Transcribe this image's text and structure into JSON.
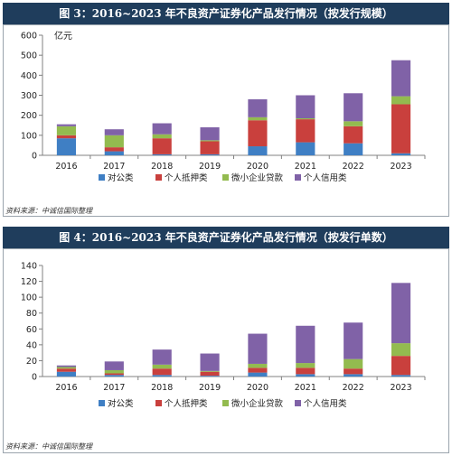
{
  "colors": {
    "title_bg": "#1f3d5c",
    "series": [
      "#3f7fc4",
      "#c9403d",
      "#93bb4f",
      "#8062a7"
    ]
  },
  "charts": [
    {
      "title": "图 3：2016~2023 年不良资产证券化产品发行情况（按发行规模）",
      "source": "资料来源：中诚信国际整理"
    },
    {
      "title": "图 4：2016~2023 年不良资产证券化产品发行情况（按发行单数）",
      "source": "资料来源：中诚信国际整理"
    }
  ],
  "chart_data": [
    {
      "type": "bar",
      "stacked": true,
      "title": "图 3：2016~2023 年不良资产证券化产品发行情况（按发行规模）",
      "unit_label": "亿元",
      "categories": [
        "2016",
        "2017",
        "2018",
        "2019",
        "2020",
        "2021",
        "2022",
        "2023"
      ],
      "ylim": [
        0,
        600
      ],
      "yticks": [
        0,
        100,
        200,
        300,
        400,
        500,
        600
      ],
      "grid": false,
      "legend": "bottom",
      "series": [
        {
          "name": "对公类",
          "values": [
            85,
            20,
            5,
            5,
            45,
            65,
            60,
            10
          ]
        },
        {
          "name": "个人抵押类",
          "values": [
            15,
            20,
            80,
            65,
            130,
            115,
            85,
            245
          ]
        },
        {
          "name": "微小企业贷款",
          "values": [
            45,
            60,
            20,
            5,
            15,
            5,
            25,
            40
          ]
        },
        {
          "name": "个人信用类",
          "values": [
            10,
            30,
            55,
            65,
            90,
            115,
            140,
            180
          ]
        }
      ]
    },
    {
      "type": "bar",
      "stacked": true,
      "title": "图 4：2016~2023 年不良资产证券化产品发行情况（按发行单数）",
      "categories": [
        "2016",
        "2017",
        "2018",
        "2019",
        "2020",
        "2021",
        "2022",
        "2023"
      ],
      "ylim": [
        0,
        140
      ],
      "yticks": [
        0,
        20,
        40,
        60,
        80,
        100,
        120,
        140
      ],
      "grid": false,
      "legend": "bottom",
      "series": [
        {
          "name": "对公类",
          "values": [
            6,
            2,
            2,
            1,
            5,
            3,
            3,
            2
          ]
        },
        {
          "name": "个人抵押类",
          "values": [
            4,
            2,
            8,
            5,
            6,
            8,
            7,
            24
          ]
        },
        {
          "name": "微小企业贷款",
          "values": [
            2,
            4,
            5,
            1,
            5,
            6,
            12,
            16
          ]
        },
        {
          "name": "个人信用类",
          "values": [
            2,
            11,
            19,
            22,
            38,
            47,
            46,
            76
          ]
        }
      ]
    }
  ]
}
